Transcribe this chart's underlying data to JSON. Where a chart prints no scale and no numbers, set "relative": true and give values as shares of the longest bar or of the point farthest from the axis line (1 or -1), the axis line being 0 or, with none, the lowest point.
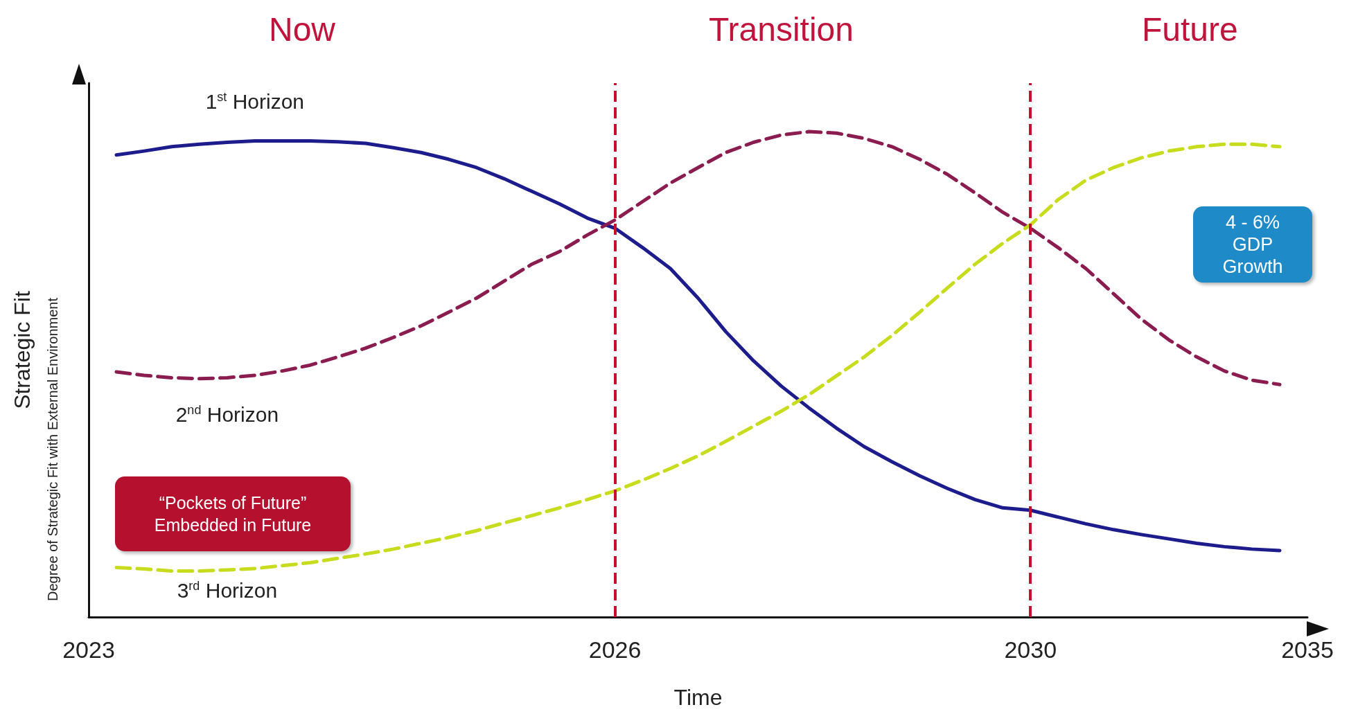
{
  "chart_data": {
    "type": "line",
    "relative": true,
    "xlabel": "Time",
    "ylabel": "Strategic Fit",
    "legend": false,
    "grid": false,
    "marker": "none",
    "categories": [
      "2023",
      null,
      null,
      null,
      null,
      null,
      null,
      null,
      null,
      null,
      null,
      null,
      null,
      null,
      null,
      null,
      null,
      null,
      null,
      "2026",
      null,
      null,
      null,
      null,
      null,
      null,
      null,
      null,
      null,
      null,
      null,
      null,
      null,
      null,
      "2030",
      null,
      null,
      null,
      null,
      null,
      null,
      null,
      null,
      null,
      "2035"
    ],
    "series": [
      {
        "name": "1$^{st}$ Horizon",
        "color": "#1c1c8c",
        "line_style": "solid",
        "values": [
          null,
          0.952,
          0.96,
          0.969,
          0.974,
          0.978,
          0.981,
          0.981,
          0.981,
          0.979,
          0.976,
          0.967,
          0.957,
          0.943,
          0.926,
          0.903,
          0.877,
          0.851,
          0.822,
          0.801,
          0.761,
          0.718,
          0.657,
          0.588,
          0.528,
          0.476,
          0.431,
          0.389,
          0.351,
          0.32,
          0.291,
          0.265,
          0.242,
          0.225,
          0.22,
          0.206,
          0.192,
          0.18,
          0.17,
          0.161,
          0.152,
          0.145,
          0.14,
          0.137,
          null
        ]
      },
      {
        "name": "2$^{nd}$ Horizon",
        "color": "#8a1c50",
        "line_style": "dashed",
        "values": [
          null,
          0.505,
          0.498,
          0.493,
          0.491,
          0.493,
          0.498,
          0.507,
          0.519,
          0.536,
          0.554,
          0.576,
          0.6,
          0.628,
          0.657,
          0.692,
          0.727,
          0.753,
          0.787,
          0.818,
          0.856,
          0.894,
          0.926,
          0.957,
          0.978,
          0.993,
          1,
          0.997,
          0.986,
          0.969,
          0.943,
          0.912,
          0.874,
          0.834,
          0.801,
          0.761,
          0.718,
          0.666,
          0.614,
          0.571,
          0.536,
          0.507,
          0.488,
          0.479,
          null
        ]
      },
      {
        "name": "3$^{rd}$ Horizon",
        "color": "#c8dc1e",
        "line_style": "dashed",
        "values": [
          null,
          0.102,
          0.099,
          0.095,
          0.095,
          0.097,
          0.1,
          0.106,
          0.112,
          0.121,
          0.13,
          0.14,
          0.152,
          0.164,
          0.178,
          0.194,
          0.209,
          0.225,
          0.242,
          0.26,
          0.282,
          0.306,
          0.332,
          0.362,
          0.393,
          0.424,
          0.458,
          0.497,
          0.536,
          0.58,
          0.628,
          0.678,
          0.727,
          0.77,
          0.808,
          0.86,
          0.9,
          0.926,
          0.946,
          0.96,
          0.969,
          0.974,
          0.974,
          0.969,
          null
        ]
      }
    ],
    "ref_lines": [
      {
        "axis": "x",
        "value": "2026",
        "color": "#c8102e",
        "line_style": "dashed"
      },
      {
        "axis": "x",
        "value": "2030",
        "color": "#c8102e",
        "line_style": "dashed"
      }
    ],
    "annotations": [
      "Now",
      "Transition",
      "Future",
      "Degree of Strategic Fit with External Environment",
      "“Pockets of Future”\nEmbedded in Future",
      "4 - 6%\nGDP\nGrowth"
    ]
  }
}
